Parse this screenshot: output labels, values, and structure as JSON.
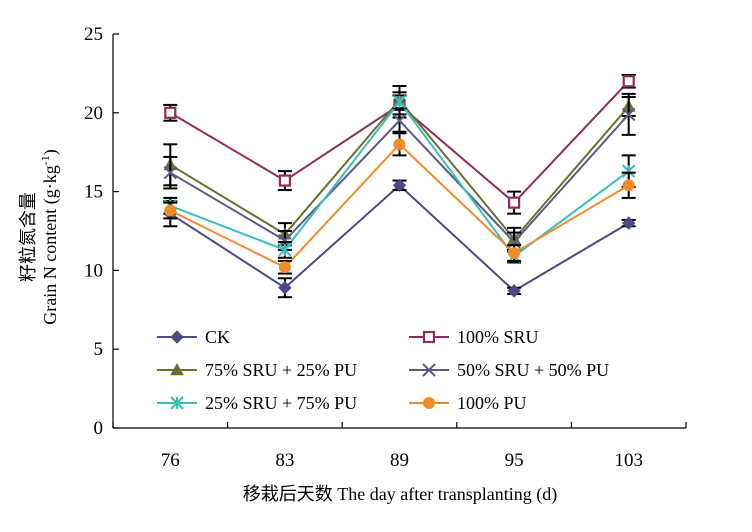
{
  "chart_data": {
    "type": "line",
    "xlabel": "移栽后天数 The day after transplanting (d)",
    "ylabel_cn": "籽粒氮含量",
    "ylabel_en": "Grain N content (g·kg",
    "ylabel_sup": "-1",
    "ylabel_close": ")",
    "categories": [
      "76",
      "83",
      "89",
      "95",
      "103"
    ],
    "ylim": [
      0,
      25
    ],
    "yticks": [
      "0",
      "5",
      "10",
      "15",
      "20",
      "25"
    ],
    "error_bars": true,
    "series": [
      {
        "name": "CK",
        "values": [
          13.6,
          8.9,
          15.4,
          8.7,
          13.0
        ],
        "errors": [
          0.8,
          0.6,
          0.3,
          0.2,
          0.2
        ],
        "color": "#4a4a85",
        "marker": "diamond"
      },
      {
        "name": "100% SRU",
        "values": [
          20.0,
          15.7,
          20.5,
          14.3,
          22.0
        ],
        "errors": [
          0.5,
          0.6,
          0.8,
          0.7,
          0.4
        ],
        "color": "#8c2d5a",
        "marker": "square-open"
      },
      {
        "name": "75% SRU + 25% PU",
        "values": [
          16.7,
          12.3,
          20.8,
          12.0,
          20.4
        ],
        "errors": [
          1.3,
          0.7,
          0.9,
          0.7,
          0.6
        ],
        "color": "#6e6e2e",
        "marker": "triangle"
      },
      {
        "name": "50% SRU + 50% PU",
        "values": [
          16.2,
          11.9,
          19.5,
          11.8,
          19.9
        ],
        "errors": [
          1.0,
          0.6,
          0.7,
          0.6,
          1.3
        ],
        "color": "#5a5a88",
        "marker": "x"
      },
      {
        "name": "25% SRU + 75% PU",
        "values": [
          14.1,
          11.3,
          20.7,
          10.9,
          16.3
        ],
        "errors": [
          0.5,
          0.5,
          0.4,
          0.4,
          1.0
        ],
        "color": "#3cbcbc",
        "marker": "star"
      },
      {
        "name": "100% PU",
        "values": [
          13.8,
          10.2,
          18.0,
          11.1,
          15.4
        ],
        "errors": [
          0.5,
          0.4,
          0.7,
          0.5,
          0.8
        ],
        "color": "#f08c28",
        "marker": "circle"
      }
    ]
  }
}
